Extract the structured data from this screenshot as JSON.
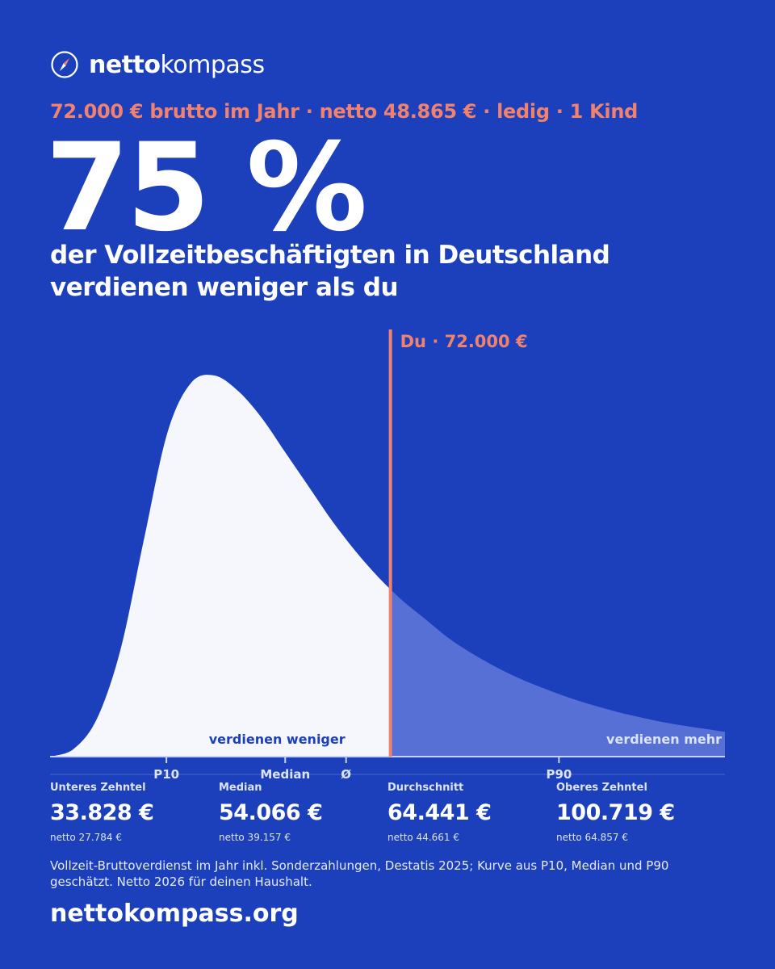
{
  "brand": {
    "name_bold": "netto",
    "name_regular": "kompass",
    "icon": "compass-icon",
    "accent_color": "#F0826E",
    "background_color": "#1C3FBC"
  },
  "subtitle": "72.000 € brutto im Jahr · netto 48.865 € · ledig · 1 Kind",
  "big_percent": "75 %",
  "headline": {
    "line1": "der Vollzeitbeschäftigten in Deutschland",
    "line2": "verdienen weniger als du"
  },
  "chart_data": {
    "type": "area",
    "unit": "€ brutto pro Jahr",
    "user_marker": {
      "label": "Du · 72.000 €",
      "value": 72000
    },
    "region_labels": {
      "left": "verdienen weniger",
      "right": "verdienen mehr"
    },
    "percent_below_user": 75,
    "x_ticks": [
      {
        "label": "P10",
        "value": 33828
      },
      {
        "label": "Median",
        "value": 54066
      },
      {
        "label": "Ø",
        "value": 64441
      },
      {
        "label": "P90",
        "value": 100719
      }
    ],
    "x_range": [
      14000,
      129000
    ],
    "curve": {
      "x": [
        14000,
        18000,
        22000,
        26000,
        30000,
        34000,
        38000,
        42000,
        46000,
        50000,
        54000,
        58000,
        62000,
        66000,
        70000,
        74000,
        78000,
        82000,
        86000,
        90000,
        94000,
        98000,
        102000,
        106000,
        110000,
        114000,
        118000,
        122000,
        126000,
        129000
      ],
      "y": [
        0.0,
        0.02,
        0.1,
        0.28,
        0.57,
        0.85,
        0.98,
        1.0,
        0.96,
        0.89,
        0.8,
        0.71,
        0.62,
        0.54,
        0.47,
        0.41,
        0.36,
        0.31,
        0.27,
        0.235,
        0.205,
        0.18,
        0.157,
        0.137,
        0.12,
        0.105,
        0.092,
        0.081,
        0.072,
        0.065
      ]
    },
    "colors": {
      "below": "#F5F7FC",
      "above": "#5670D6",
      "marker": "#F0826E"
    }
  },
  "stats": [
    {
      "label": "Unteres Zehntel",
      "value": "33.828 €",
      "net": "netto 27.784 €"
    },
    {
      "label": "Median",
      "value": "54.066 €",
      "net": "netto 39.157 €"
    },
    {
      "label": "Durchschnitt",
      "value": "64.441 €",
      "net": "netto 44.661 €"
    },
    {
      "label": "Oberes Zehntel",
      "value": "100.719 €",
      "net": "netto 64.857 €"
    }
  ],
  "footnote": "Vollzeit-Bruttoverdienst im Jahr inkl. Sonderzahlungen, Destatis 2025; Kurve aus P10, Median und P90 geschätzt. Netto 2026 für deinen Haushalt.",
  "footer_url": "nettokompass.org"
}
